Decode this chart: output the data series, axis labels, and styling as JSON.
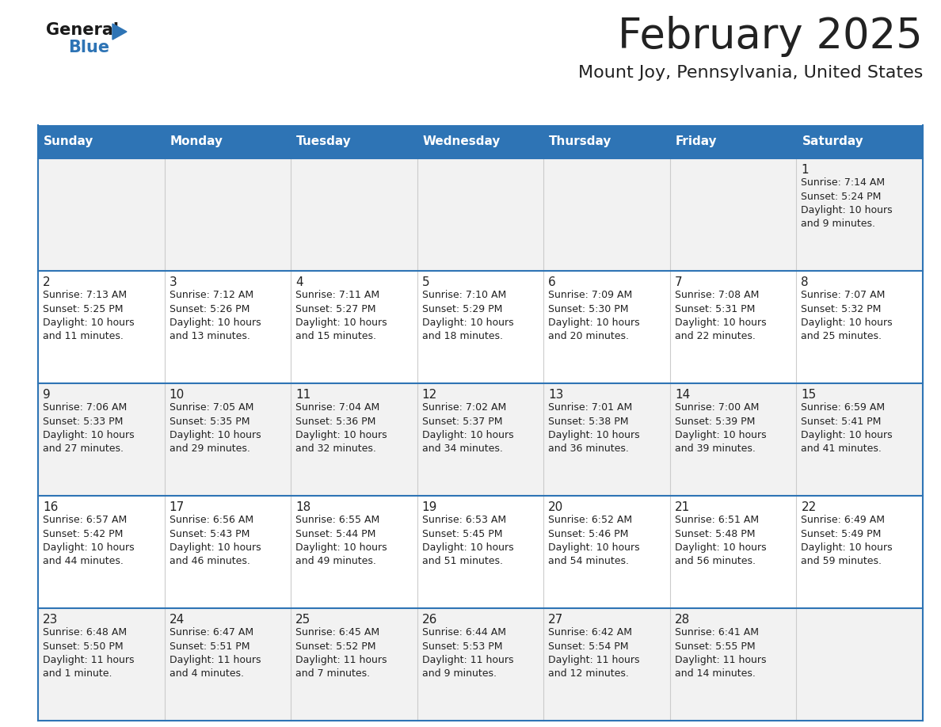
{
  "title": "February 2025",
  "subtitle": "Mount Joy, Pennsylvania, United States",
  "header_bg": "#2e74b5",
  "header_text_color": "#ffffff",
  "row_bg": [
    "#f2f2f2",
    "#ffffff",
    "#f2f2f2",
    "#ffffff",
    "#f2f2f2"
  ],
  "text_color": "#222222",
  "border_color": "#2e74b5",
  "divider_color": "#2e74b5",
  "days_of_week": [
    "Sunday",
    "Monday",
    "Tuesday",
    "Wednesday",
    "Thursday",
    "Friday",
    "Saturday"
  ],
  "calendar_data": [
    [
      {
        "day": "",
        "info": ""
      },
      {
        "day": "",
        "info": ""
      },
      {
        "day": "",
        "info": ""
      },
      {
        "day": "",
        "info": ""
      },
      {
        "day": "",
        "info": ""
      },
      {
        "day": "",
        "info": ""
      },
      {
        "day": "1",
        "info": "Sunrise: 7:14 AM\nSunset: 5:24 PM\nDaylight: 10 hours\nand 9 minutes."
      }
    ],
    [
      {
        "day": "2",
        "info": "Sunrise: 7:13 AM\nSunset: 5:25 PM\nDaylight: 10 hours\nand 11 minutes."
      },
      {
        "day": "3",
        "info": "Sunrise: 7:12 AM\nSunset: 5:26 PM\nDaylight: 10 hours\nand 13 minutes."
      },
      {
        "day": "4",
        "info": "Sunrise: 7:11 AM\nSunset: 5:27 PM\nDaylight: 10 hours\nand 15 minutes."
      },
      {
        "day": "5",
        "info": "Sunrise: 7:10 AM\nSunset: 5:29 PM\nDaylight: 10 hours\nand 18 minutes."
      },
      {
        "day": "6",
        "info": "Sunrise: 7:09 AM\nSunset: 5:30 PM\nDaylight: 10 hours\nand 20 minutes."
      },
      {
        "day": "7",
        "info": "Sunrise: 7:08 AM\nSunset: 5:31 PM\nDaylight: 10 hours\nand 22 minutes."
      },
      {
        "day": "8",
        "info": "Sunrise: 7:07 AM\nSunset: 5:32 PM\nDaylight: 10 hours\nand 25 minutes."
      }
    ],
    [
      {
        "day": "9",
        "info": "Sunrise: 7:06 AM\nSunset: 5:33 PM\nDaylight: 10 hours\nand 27 minutes."
      },
      {
        "day": "10",
        "info": "Sunrise: 7:05 AM\nSunset: 5:35 PM\nDaylight: 10 hours\nand 29 minutes."
      },
      {
        "day": "11",
        "info": "Sunrise: 7:04 AM\nSunset: 5:36 PM\nDaylight: 10 hours\nand 32 minutes."
      },
      {
        "day": "12",
        "info": "Sunrise: 7:02 AM\nSunset: 5:37 PM\nDaylight: 10 hours\nand 34 minutes."
      },
      {
        "day": "13",
        "info": "Sunrise: 7:01 AM\nSunset: 5:38 PM\nDaylight: 10 hours\nand 36 minutes."
      },
      {
        "day": "14",
        "info": "Sunrise: 7:00 AM\nSunset: 5:39 PM\nDaylight: 10 hours\nand 39 minutes."
      },
      {
        "day": "15",
        "info": "Sunrise: 6:59 AM\nSunset: 5:41 PM\nDaylight: 10 hours\nand 41 minutes."
      }
    ],
    [
      {
        "day": "16",
        "info": "Sunrise: 6:57 AM\nSunset: 5:42 PM\nDaylight: 10 hours\nand 44 minutes."
      },
      {
        "day": "17",
        "info": "Sunrise: 6:56 AM\nSunset: 5:43 PM\nDaylight: 10 hours\nand 46 minutes."
      },
      {
        "day": "18",
        "info": "Sunrise: 6:55 AM\nSunset: 5:44 PM\nDaylight: 10 hours\nand 49 minutes."
      },
      {
        "day": "19",
        "info": "Sunrise: 6:53 AM\nSunset: 5:45 PM\nDaylight: 10 hours\nand 51 minutes."
      },
      {
        "day": "20",
        "info": "Sunrise: 6:52 AM\nSunset: 5:46 PM\nDaylight: 10 hours\nand 54 minutes."
      },
      {
        "day": "21",
        "info": "Sunrise: 6:51 AM\nSunset: 5:48 PM\nDaylight: 10 hours\nand 56 minutes."
      },
      {
        "day": "22",
        "info": "Sunrise: 6:49 AM\nSunset: 5:49 PM\nDaylight: 10 hours\nand 59 minutes."
      }
    ],
    [
      {
        "day": "23",
        "info": "Sunrise: 6:48 AM\nSunset: 5:50 PM\nDaylight: 11 hours\nand 1 minute."
      },
      {
        "day": "24",
        "info": "Sunrise: 6:47 AM\nSunset: 5:51 PM\nDaylight: 11 hours\nand 4 minutes."
      },
      {
        "day": "25",
        "info": "Sunrise: 6:45 AM\nSunset: 5:52 PM\nDaylight: 11 hours\nand 7 minutes."
      },
      {
        "day": "26",
        "info": "Sunrise: 6:44 AM\nSunset: 5:53 PM\nDaylight: 11 hours\nand 9 minutes."
      },
      {
        "day": "27",
        "info": "Sunrise: 6:42 AM\nSunset: 5:54 PM\nDaylight: 11 hours\nand 12 minutes."
      },
      {
        "day": "28",
        "info": "Sunrise: 6:41 AM\nSunset: 5:55 PM\nDaylight: 11 hours\nand 14 minutes."
      },
      {
        "day": "",
        "info": ""
      }
    ]
  ],
  "logo_text_general": "General",
  "logo_text_blue": "Blue",
  "logo_color_general": "#1a1a1a",
  "logo_color_blue": "#2e74b5",
  "logo_triangle_color": "#2e74b5",
  "title_fontsize": 38,
  "subtitle_fontsize": 16,
  "header_fontsize": 11,
  "day_num_fontsize": 11,
  "info_fontsize": 9
}
